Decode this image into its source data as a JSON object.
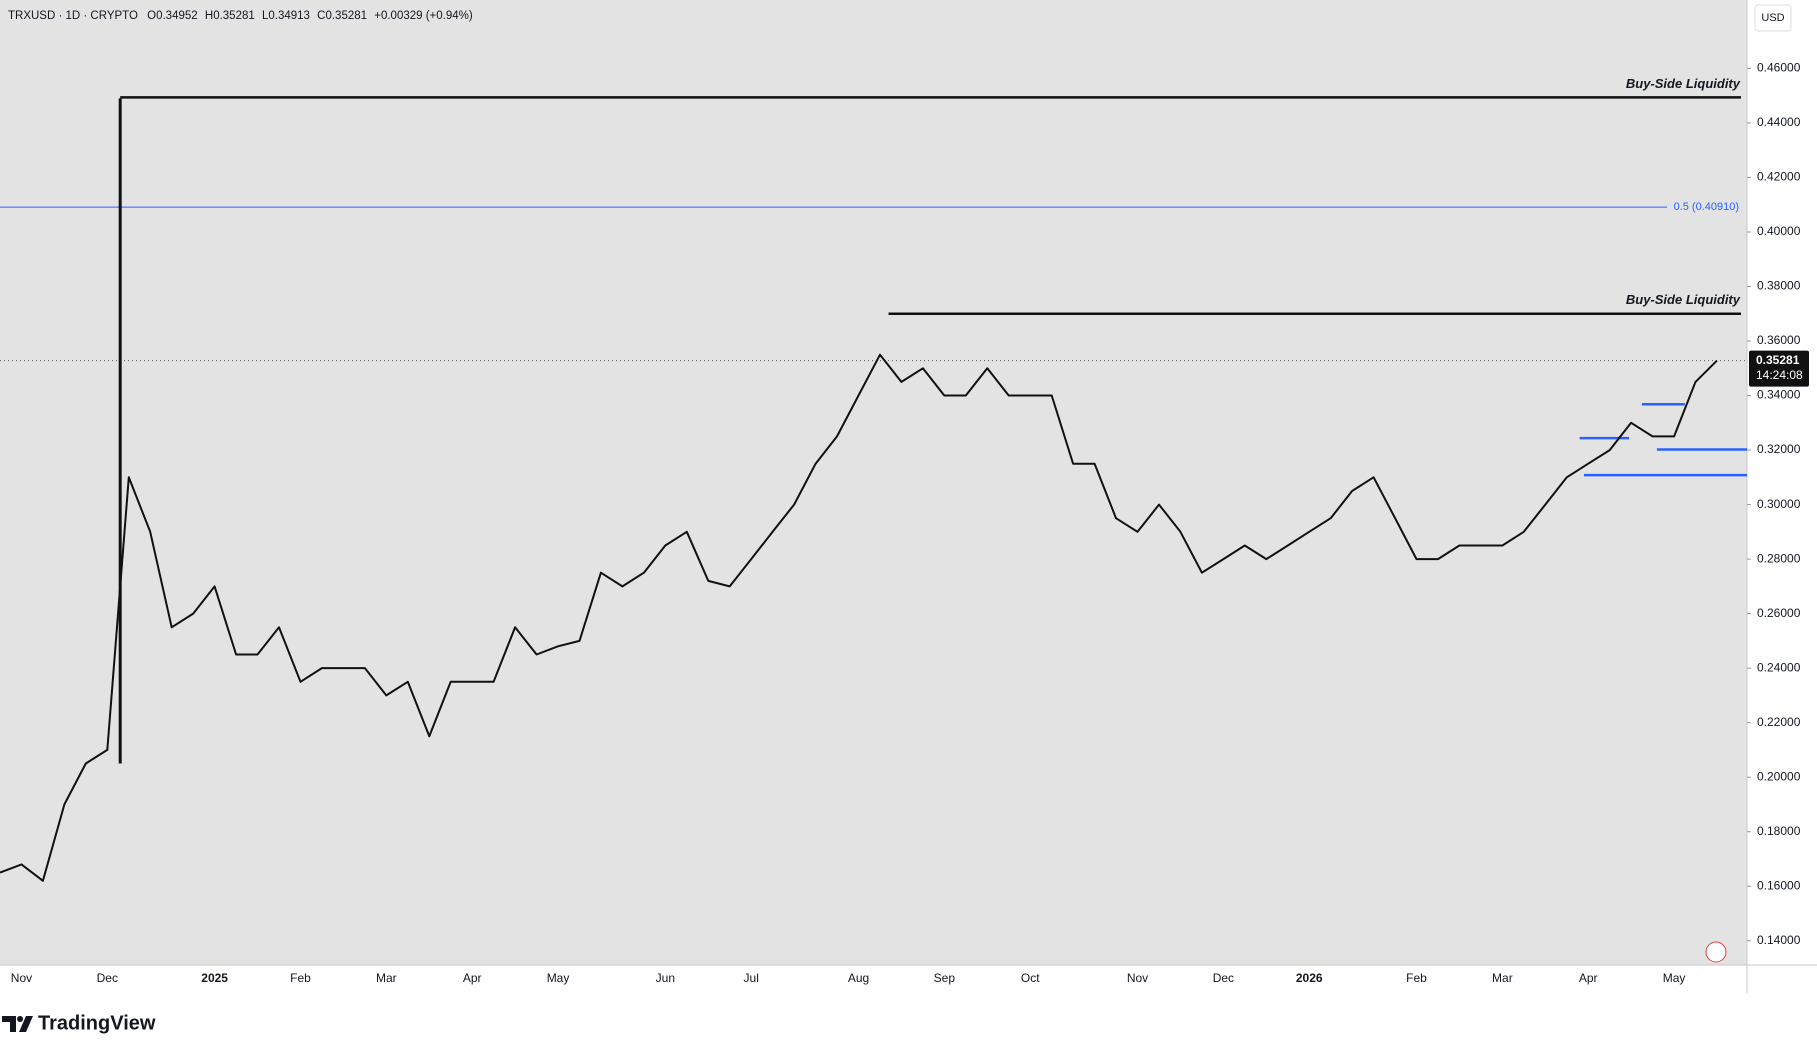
{
  "chart_data": {
    "type": "line",
    "symbol": "TRXUSD · 1D · CRYPTO",
    "ohlc": [
      {
        "label": "O",
        "value": 0.34952
      },
      {
        "label": "H",
        "value": 0.35281
      },
      {
        "label": "L",
        "value": 0.34913
      },
      {
        "label": "C",
        "value": 0.35281
      }
    ],
    "change": "+0.00329 (+0.94%)",
    "currency": "USD",
    "brand": "TradingView",
    "color": "#111111",
    "categories": [
      null,
      "Nov",
      null,
      null,
      null,
      "Dec",
      null,
      null,
      null,
      null,
      "2025",
      null,
      null,
      null,
      "Feb",
      null,
      null,
      null,
      "Mar",
      null,
      null,
      null,
      "Apr",
      null,
      null,
      null,
      "May",
      null,
      null,
      null,
      null,
      "Jun",
      null,
      null,
      null,
      "Jul",
      null,
      null,
      null,
      null,
      "Aug",
      null,
      null,
      null,
      "Sep",
      null,
      null,
      null,
      "Oct",
      null,
      null,
      null,
      null,
      "Nov",
      null,
      null,
      null,
      "Dec",
      null,
      null,
      null,
      "2026",
      null,
      null,
      null,
      null,
      "Feb",
      null,
      null,
      null,
      "Mar",
      null,
      null,
      null,
      "Apr",
      null,
      null,
      null,
      "May",
      null,
      null
    ],
    "values": [
      0.165,
      0.168,
      0.162,
      0.19,
      0.205,
      0.21,
      0.31,
      0.29,
      0.255,
      0.26,
      0.27,
      0.245,
      0.245,
      0.255,
      0.235,
      0.24,
      0.24,
      0.24,
      0.23,
      0.235,
      0.215,
      0.235,
      0.235,
      0.235,
      0.255,
      0.245,
      0.248,
      0.25,
      0.275,
      0.27,
      0.275,
      0.285,
      0.29,
      0.272,
      0.27,
      0.28,
      0.29,
      0.3,
      0.315,
      0.325,
      0.34,
      0.355,
      0.345,
      0.35,
      0.34,
      0.34,
      0.35,
      0.34,
      0.34,
      0.34,
      0.315,
      0.315,
      0.295,
      0.29,
      0.3,
      0.29,
      0.275,
      0.28,
      0.285,
      0.28,
      0.285,
      0.29,
      0.295,
      0.305,
      0.31,
      0.295,
      0.28,
      0.28,
      0.285,
      0.285,
      0.285,
      0.29,
      0.3,
      0.31,
      0.315,
      0.32,
      0.33,
      0.325,
      0.325,
      0.345,
      0.35281
    ],
    "peak": {
      "x": 5.6,
      "low": 0.205,
      "high": 0.449
    },
    "ylim": [
      0.1311,
      0.4851
    ],
    "yticks": [
      {
        "value": 0.14,
        "label": "0.14000"
      },
      {
        "value": 0.16,
        "label": "0.16000"
      },
      {
        "value": 0.18,
        "label": "0.18000"
      },
      {
        "value": 0.2,
        "label": "0.20000"
      },
      {
        "value": 0.22,
        "label": "0.22000"
      },
      {
        "value": 0.24,
        "label": "0.24000"
      },
      {
        "value": 0.26,
        "label": "0.26000"
      },
      {
        "value": 0.28,
        "label": "0.28000"
      },
      {
        "value": 0.3,
        "label": "0.30000"
      },
      {
        "value": 0.32,
        "label": "0.32000"
      },
      {
        "value": 0.34,
        "label": "0.34000"
      },
      {
        "value": 0.36,
        "label": "0.36000"
      },
      {
        "value": 0.38,
        "label": "0.38000"
      },
      {
        "value": 0.4,
        "label": "0.40000"
      },
      {
        "value": 0.42,
        "label": "0.42000"
      },
      {
        "value": 0.44,
        "label": "0.44000"
      },
      {
        "value": 0.46,
        "label": "0.46000"
      }
    ],
    "levels": [
      {
        "label": "Buy-Side Liquidity",
        "value": 0.4494,
        "x0": 5.6,
        "color": "#111111"
      },
      {
        "label": "Buy-Side Liquidity",
        "value": 0.37,
        "x0": 41.4,
        "color": "#111111"
      }
    ],
    "fib": {
      "label": "0.5 (0.40910)",
      "value": 0.4091,
      "color": "#2962ff"
    },
    "zones": [
      {
        "value": 0.3244,
        "x0": 73.6,
        "x1": 75.9,
        "color": "#2962ff"
      },
      {
        "value": 0.3202,
        "x0": 77.2,
        "x1": 81.5,
        "color": "#2962ff"
      },
      {
        "value": 0.3368,
        "x0": 76.5,
        "x1": 78.5,
        "color": "#2962ff"
      },
      {
        "value": 0.3108,
        "x0": 73.8,
        "x1": 81.5,
        "color": "#2962ff"
      }
    ],
    "last": {
      "value": 0.35281,
      "time": "14:24:08"
    }
  }
}
